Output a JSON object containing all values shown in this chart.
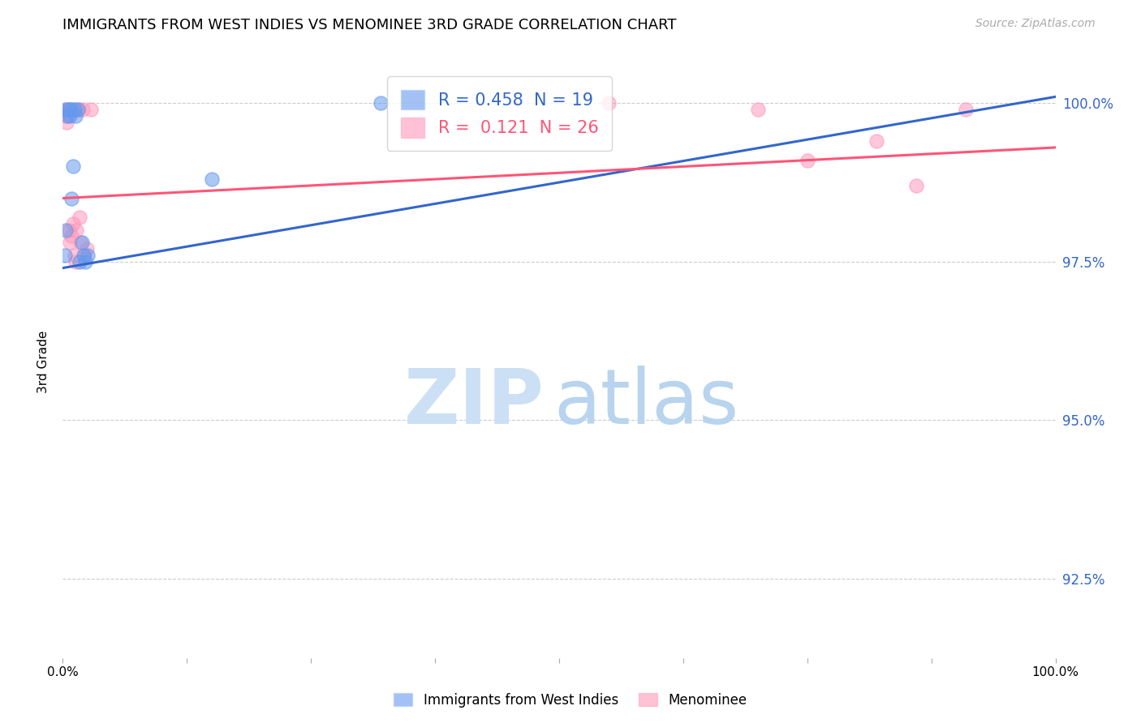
{
  "title": "IMMIGRANTS FROM WEST INDIES VS MENOMINEE 3RD GRADE CORRELATION CHART",
  "source": "Source: ZipAtlas.com",
  "ylabel": "3rd Grade",
  "xlim": [
    0.0,
    1.0
  ],
  "ylim": [
    0.9125,
    1.006
  ],
  "yticks": [
    0.925,
    0.95,
    0.975,
    1.0
  ],
  "ytick_labels": [
    "92.5%",
    "95.0%",
    "97.5%",
    "100.0%"
  ],
  "xticks": [
    0.0,
    0.125,
    0.25,
    0.375,
    0.5,
    0.625,
    0.75,
    0.875,
    1.0
  ],
  "xtick_labels": [
    "0.0%",
    "",
    "",
    "",
    "",
    "",
    "",
    "",
    "100.0%"
  ],
  "blue_R": 0.458,
  "blue_N": 19,
  "pink_R": 0.121,
  "pink_N": 26,
  "blue_color": "#6699EE",
  "pink_color": "#FF99BB",
  "blue_line_color": "#3366CC",
  "pink_line_color": "#FF5577",
  "blue_scatter_x": [
    0.002,
    0.003,
    0.004,
    0.005,
    0.006,
    0.007,
    0.008,
    0.009,
    0.01,
    0.012,
    0.013,
    0.015,
    0.017,
    0.019,
    0.021,
    0.023,
    0.025,
    0.15,
    0.32
  ],
  "blue_scatter_y": [
    0.976,
    0.98,
    0.999,
    0.998,
    0.999,
    0.998,
    0.999,
    0.985,
    0.99,
    0.999,
    0.998,
    0.999,
    0.975,
    0.978,
    0.976,
    0.975,
    0.976,
    0.988,
    1.0
  ],
  "pink_scatter_x": [
    0.002,
    0.003,
    0.004,
    0.005,
    0.006,
    0.007,
    0.008,
    0.009,
    0.01,
    0.011,
    0.012,
    0.013,
    0.014,
    0.016,
    0.017,
    0.018,
    0.02,
    0.022,
    0.024,
    0.028,
    0.55,
    0.7,
    0.75,
    0.82,
    0.86,
    0.91
  ],
  "pink_scatter_y": [
    0.999,
    0.998,
    0.997,
    0.999,
    0.98,
    0.978,
    0.999,
    0.979,
    0.981,
    0.999,
    0.976,
    0.975,
    0.98,
    0.999,
    0.982,
    0.978,
    0.999,
    0.976,
    0.977,
    0.999,
    1.0,
    0.999,
    0.991,
    0.994,
    0.987,
    0.999
  ],
  "blue_line_x0": 0.0,
  "blue_line_x1": 1.0,
  "blue_line_y0": 0.974,
  "blue_line_y1": 1.001,
  "pink_line_x0": 0.0,
  "pink_line_x1": 1.0,
  "pink_line_y0": 0.985,
  "pink_line_y1": 0.993
}
